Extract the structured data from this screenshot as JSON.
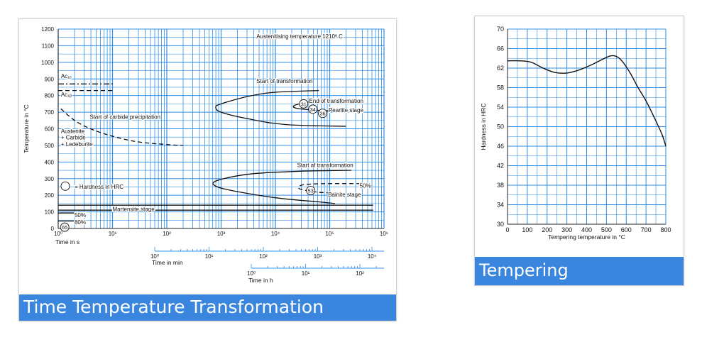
{
  "colors": {
    "grid": "#2e8ee6",
    "caption_bg": "#3a86df",
    "caption_text": "#ffffff",
    "curve": "#111111"
  },
  "chart_data": [
    {
      "type": "line",
      "caption": "Time Temperature Transformation",
      "ylabel": "Temperature in °C",
      "yticks": [
        "0",
        "100",
        "200",
        "300",
        "400",
        "500",
        "600",
        "700",
        "800",
        "900",
        "1000",
        "1100",
        "1200"
      ],
      "ylim": [
        0,
        1200
      ],
      "xlabel_s": "Time in s",
      "xticks_s": [
        "10⁰",
        "10¹",
        "10²",
        "10³",
        "10⁴",
        "10⁵",
        "10⁶"
      ],
      "xlim_log10_s": [
        0,
        6
      ],
      "xlabel_min": "Time in min",
      "xticks_min": [
        "10⁰",
        "10¹",
        "10²",
        "10³",
        "10⁴"
      ],
      "xlabel_h": "Time in h",
      "xticks_h": [
        "10⁰",
        "10¹",
        "10²"
      ],
      "grid": true,
      "annotations": {
        "austenitising": "Austenitising temperature 1210º C",
        "ac1e": "Ac₁ₑ",
        "ac1b": "Ac₁ᵦ",
        "start_transformation_upper": "Start of transformation",
        "end_transformation": "End of transformation",
        "pearlite": "Pearlite stage",
        "carbide": "Start of carbide precipitation",
        "phase_line1": "Austenite",
        "phase_line2": "+ Carbide",
        "phase_line3": "+ Ledeburite",
        "start_transformation_lower": "Start af transformation",
        "bainite": "Bainite stage",
        "bainite_pct": "50%",
        "hardness_legend": "= Hardness in HRC",
        "martensite": "Martensite stage",
        "ms_50": "50%",
        "ms_80": "80%"
      },
      "hardness_values": [
        {
          "value": "31",
          "log10_t": 4.52,
          "temp": 750
        },
        {
          "value": "34",
          "log10_t": 4.69,
          "temp": 718
        },
        {
          "value": "36",
          "log10_t": 4.87,
          "temp": 693
        },
        {
          "value": "53",
          "log10_t": 4.65,
          "temp": 228
        },
        {
          "value": "65",
          "log10_t": 0.12,
          "temp": 8
        }
      ],
      "series": [
        {
          "name": "Ac₁ₑ",
          "style": "dashdot",
          "points": [
            [
              0,
              870
            ],
            [
              1.0,
              870
            ]
          ]
        },
        {
          "name": "Ac₁ᵦ",
          "style": "dashed",
          "points": [
            [
              0,
              830
            ],
            [
              1.0,
              830
            ]
          ]
        },
        {
          "name": "Start of carbide precipitation",
          "style": "dashed",
          "points": [
            [
              0.05,
              720
            ],
            [
              0.35,
              640
            ],
            [
              0.8,
              575
            ],
            [
              1.4,
              525
            ],
            [
              2.0,
              505
            ],
            [
              2.3,
              500
            ]
          ]
        },
        {
          "name": "Start of transformation (pearlite)",
          "style": "solid",
          "points": [
            [
              4.8,
              830
            ],
            [
              4.0,
              820
            ],
            [
              3.5,
              795
            ],
            [
              3.0,
              750
            ],
            [
              2.9,
              730
            ],
            [
              3.0,
              700
            ],
            [
              3.5,
              660
            ],
            [
              4.2,
              625
            ],
            [
              5.3,
              615
            ]
          ]
        },
        {
          "name": "End of transformation (pearlite)",
          "style": "solid",
          "points": [
            [
              5.3,
              775
            ],
            [
              4.7,
              765
            ],
            [
              4.35,
              740
            ],
            [
              4.45,
              720
            ],
            [
              5.1,
              705
            ]
          ]
        },
        {
          "name": "Start of transformation (bainite)",
          "style": "solid",
          "points": [
            [
              5.4,
              350
            ],
            [
              4.5,
              345
            ],
            [
              3.6,
              330
            ],
            [
              3.05,
              300
            ],
            [
              2.85,
              270
            ],
            [
              3.1,
              235
            ],
            [
              4.0,
              185
            ],
            [
              4.8,
              160
            ],
            [
              5.1,
              150
            ]
          ]
        },
        {
          "name": "Bainite 50%",
          "style": "dashed",
          "points": [
            [
              5.7,
              270
            ],
            [
              4.9,
              270
            ],
            [
              4.5,
              262
            ],
            [
              4.45,
              238
            ],
            [
              4.8,
              218
            ],
            [
              5.2,
              214
            ]
          ]
        },
        {
          "name": "Martensite stage start",
          "style": "solid",
          "points": [
            [
              0,
              140
            ],
            [
              5.8,
              140
            ]
          ]
        },
        {
          "name": "Martensite 50%",
          "style": "solid",
          "points": [
            [
              0,
              93
            ],
            [
              0.38,
              93
            ]
          ]
        },
        {
          "name": "Martensite 80%",
          "style": "solid",
          "points": [
            [
              0,
              45
            ],
            [
              0.38,
              45
            ]
          ]
        },
        {
          "name": "Martensite guide",
          "style": "solid",
          "points": [
            [
              0,
              110
            ],
            [
              5.8,
              110
            ]
          ]
        }
      ]
    },
    {
      "type": "line",
      "caption": "Tempering",
      "xlabel": "Tempering temperature in °C",
      "ylabel": "Hardness in HRC",
      "xticks": [
        "0",
        "100",
        "200",
        "300",
        "400",
        "500",
        "600",
        "700",
        "800"
      ],
      "yticks": [
        "30",
        "34",
        "38",
        "42",
        "46",
        "50",
        "54",
        "58",
        "62",
        "66",
        "70"
      ],
      "xlim": [
        0,
        800
      ],
      "ylim": [
        30,
        70
      ],
      "grid": true,
      "series": [
        {
          "name": "Hardness",
          "x": [
            0,
            60,
            120,
            180,
            240,
            300,
            360,
            420,
            480,
            520,
            550,
            580,
            620,
            660,
            700,
            740,
            780,
            800
          ],
          "y": [
            63.5,
            63.5,
            63.2,
            62.0,
            61.1,
            61.0,
            61.6,
            62.6,
            63.8,
            64.5,
            64.4,
            63.4,
            61.0,
            58.0,
            55.3,
            52.0,
            48.5,
            46.0
          ]
        }
      ]
    }
  ]
}
